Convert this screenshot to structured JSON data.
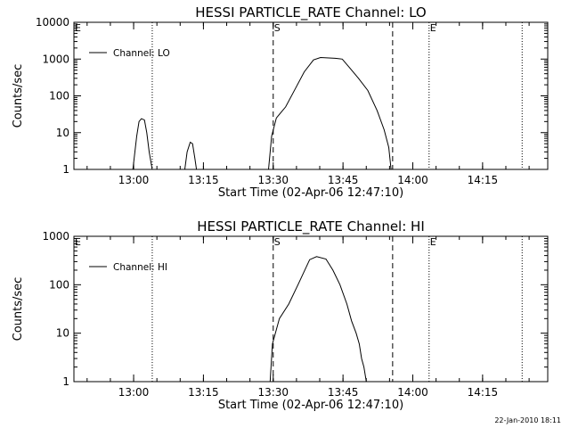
{
  "chart_data": [
    {
      "type": "line",
      "title": "HESSI PARTICLE_RATE Channel: LO",
      "xlabel": "Start Time (02-Apr-06 12:47:10)",
      "ylabel": "Counts/sec",
      "yscale": "log",
      "xlim": [
        "12:47:10",
        "14:29:00"
      ],
      "ylim": [
        1,
        10000
      ],
      "x_ticks": [
        "13:00",
        "13:15",
        "13:30",
        "13:45",
        "14:00",
        "14:15"
      ],
      "y_ticks": [
        "1",
        "10",
        "100",
        "1000",
        "10000"
      ],
      "legend": "top-left",
      "series": [
        {
          "name": "Channel: LO",
          "points": [
            [
              "12:59:50",
              1
            ],
            [
              "13:00:40",
              8
            ],
            [
              "13:01:10",
              20
            ],
            [
              "13:01:40",
              24
            ],
            [
              "13:02:20",
              22
            ],
            [
              "13:02:50",
              10
            ],
            [
              "13:03:20",
              3
            ],
            [
              "13:04:00",
              1
            ],
            [
              "13:11:00",
              1
            ],
            [
              "13:11:30",
              3
            ],
            [
              "13:12:10",
              5.5
            ],
            [
              "13:12:40",
              5
            ],
            [
              "13:13:10",
              2
            ],
            [
              "13:13:30",
              1
            ],
            [
              "13:29:00",
              1
            ],
            [
              "13:29:40",
              8
            ],
            [
              "13:30:40",
              25
            ],
            [
              "13:32:40",
              50
            ],
            [
              "13:34:40",
              150
            ],
            [
              "13:36:40",
              450
            ],
            [
              "13:38:40",
              950
            ],
            [
              "13:40:10",
              1100
            ],
            [
              "13:43:20",
              1050
            ],
            [
              "13:44:50",
              1000
            ],
            [
              "13:46:20",
              600
            ],
            [
              "13:48:20",
              300
            ],
            [
              "13:50:20",
              140
            ],
            [
              "13:52:20",
              40
            ],
            [
              "13:53:50",
              12
            ],
            [
              "13:54:50",
              4
            ],
            [
              "13:55:20",
              1
            ]
          ]
        }
      ],
      "markers": {
        "dotted": [
          "13:04:00",
          "14:03:30",
          "14:23:30"
        ],
        "dashed": [
          "13:30:00",
          "13:55:40"
        ],
        "labels": [
          {
            "text": "E",
            "at": "12:47:10"
          },
          {
            "text": "S",
            "at": "13:30:00"
          },
          {
            "text": "E",
            "at": "14:03:30"
          }
        ]
      }
    },
    {
      "type": "line",
      "title": "HESSI PARTICLE_RATE Channel: HI",
      "xlabel": "Start Time (02-Apr-06 12:47:10)",
      "ylabel": "Counts/sec",
      "yscale": "log",
      "xlim": [
        "12:47:10",
        "14:29:00"
      ],
      "ylim": [
        1,
        1000
      ],
      "x_ticks": [
        "13:00",
        "13:15",
        "13:30",
        "13:45",
        "14:00",
        "14:15"
      ],
      "y_ticks": [
        "1",
        "10",
        "100",
        "1000"
      ],
      "legend": "top-left",
      "series": [
        {
          "name": "Channel: HI",
          "points": [
            [
              "13:29:20",
              1
            ],
            [
              "13:29:50",
              6
            ],
            [
              "13:31:20",
              20
            ],
            [
              "13:33:20",
              40
            ],
            [
              "13:35:20",
              100
            ],
            [
              "13:37:50",
              330
            ],
            [
              "13:39:20",
              380
            ],
            [
              "13:41:20",
              340
            ],
            [
              "13:42:50",
              200
            ],
            [
              "13:44:20",
              100
            ],
            [
              "13:45:50",
              40
            ],
            [
              "13:46:50",
              18
            ],
            [
              "13:47:50",
              10
            ],
            [
              "13:48:30",
              6
            ],
            [
              "13:49:00",
              3
            ],
            [
              "13:49:30",
              2
            ],
            [
              "13:50:00",
              1
            ]
          ]
        }
      ],
      "markers": {
        "dotted": [
          "13:04:00",
          "14:03:30",
          "14:23:30"
        ],
        "dashed": [
          "13:30:00",
          "13:55:40"
        ],
        "labels": [
          {
            "text": "E",
            "at": "12:47:10"
          },
          {
            "text": "S",
            "at": "13:30:00"
          },
          {
            "text": "E",
            "at": "14:03:30"
          }
        ]
      }
    }
  ],
  "footer": "22-Jan-2010 18:11"
}
